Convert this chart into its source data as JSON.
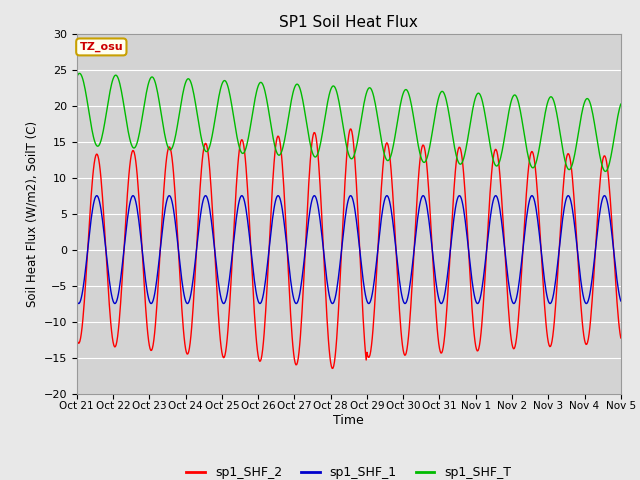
{
  "title": "SP1 Soil Heat Flux",
  "ylabel": "Soil Heat Flux (W/m2), SoilT (C)",
  "xlabel": "Time",
  "ylim": [
    -20,
    30
  ],
  "fig_facecolor": "#e8e8e8",
  "plot_bg_color": "#d3d3d3",
  "grid_color": "#ffffff",
  "tz_label": "TZ_osu",
  "tz_bg": "#fffff0",
  "tz_border": "#c8a000",
  "tz_text_color": "#cc0000",
  "legend_labels": [
    "sp1_SHF_2",
    "sp1_SHF_1",
    "sp1_SHF_T"
  ],
  "legend_colors": [
    "#ff0000",
    "#0000cc",
    "#00bb00"
  ],
  "x_tick_labels": [
    "Oct 21",
    "Oct 22",
    "Oct 23",
    "Oct 24",
    "Oct 25",
    "Oct 26",
    "Oct 27",
    "Oct 28",
    "Oct 29",
    "Oct 30",
    "Oct 31",
    "Nov 1",
    "Nov 2",
    "Nov 3",
    "Nov 4",
    "Nov 5"
  ],
  "n_days": 15,
  "points_per_day": 48,
  "yticks": [
    -20,
    -15,
    -10,
    -5,
    0,
    5,
    10,
    15,
    20,
    25,
    30
  ]
}
